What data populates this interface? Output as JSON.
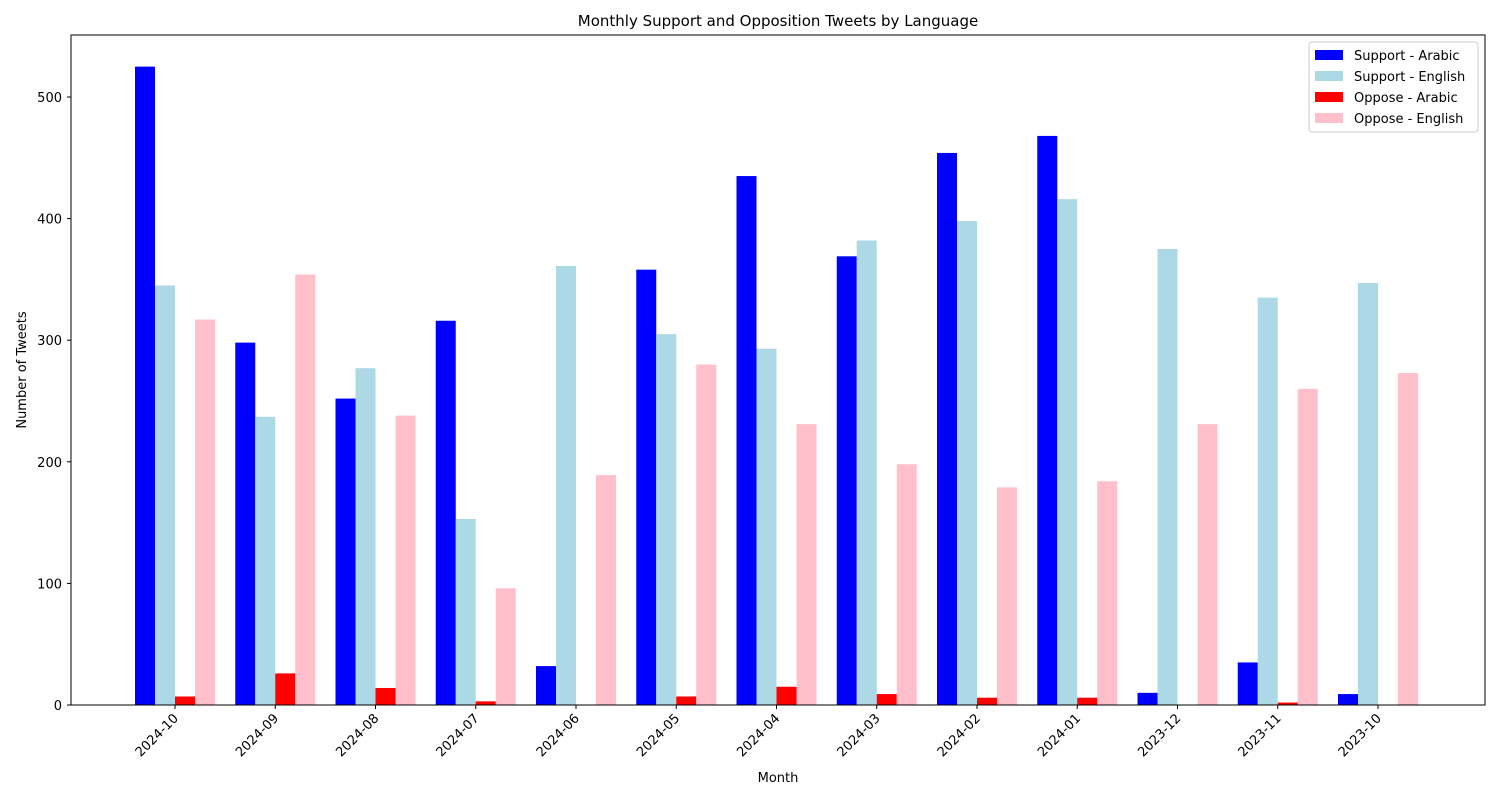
{
  "chart_data": {
    "type": "bar",
    "title": "Monthly Support and Opposition Tweets by Language",
    "xlabel": "Month",
    "ylabel": "Number of Tweets",
    "categories": [
      "2024-10",
      "2024-09",
      "2024-08",
      "2024-07",
      "2024-06",
      "2024-05",
      "2024-04",
      "2024-03",
      "2024-02",
      "2024-01",
      "2023-12",
      "2023-11",
      "2023-10"
    ],
    "ylim": [
      0,
      551
    ],
    "yticks": [
      0,
      100,
      200,
      300,
      400,
      500
    ],
    "legend_position": "top-right",
    "series": [
      {
        "name": "Support - Arabic",
        "color": "#0000ff",
        "values": [
          525,
          298,
          252,
          316,
          32,
          358,
          435,
          369,
          454,
          468,
          10,
          35,
          9
        ]
      },
      {
        "name": "Support - English",
        "color": "#add8e6",
        "values": [
          345,
          237,
          277,
          153,
          361,
          305,
          293,
          382,
          398,
          416,
          375,
          335,
          347
        ]
      },
      {
        "name": "Oppose - Arabic",
        "color": "#ff0000",
        "values": [
          7,
          26,
          14,
          3,
          0,
          7,
          15,
          9,
          6,
          6,
          0,
          2,
          0
        ]
      },
      {
        "name": "Oppose - English",
        "color": "#ffc0cb",
        "values": [
          317,
          354,
          238,
          96,
          189,
          280,
          231,
          198,
          179,
          184,
          231,
          260,
          273
        ]
      }
    ]
  }
}
